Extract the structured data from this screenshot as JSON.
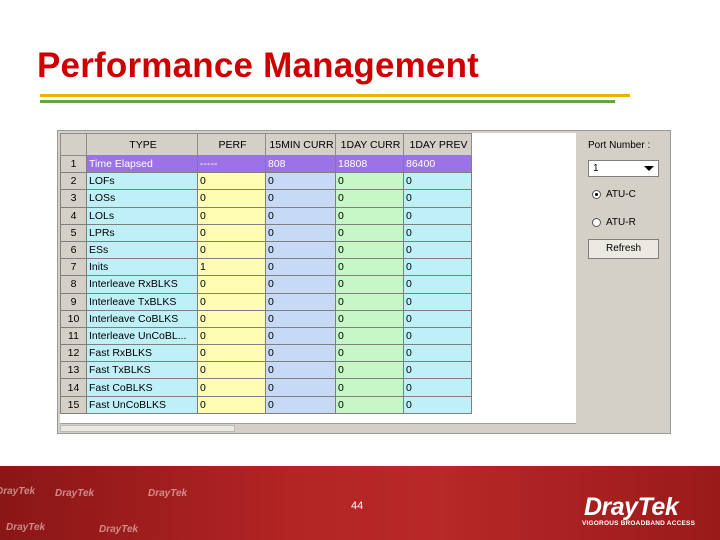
{
  "slide": {
    "title": "Performance Management",
    "page_number": "44"
  },
  "grid": {
    "columns": [
      "",
      "TYPE",
      "PERF",
      "15MIN CURR",
      "1DAY CURR",
      "1DAY PREV"
    ],
    "rows": [
      {
        "num": "1",
        "type": "Time Elapsed",
        "perf": "-----",
        "c15": "808",
        "dcur": "18808",
        "dprev": "86400",
        "selected": true
      },
      {
        "num": "2",
        "type": "LOFs",
        "perf": "0",
        "c15": "0",
        "dcur": "0",
        "dprev": "0"
      },
      {
        "num": "3",
        "type": "LOSs",
        "perf": "0",
        "c15": "0",
        "dcur": "0",
        "dprev": "0"
      },
      {
        "num": "4",
        "type": "LOLs",
        "perf": "0",
        "c15": "0",
        "dcur": "0",
        "dprev": "0"
      },
      {
        "num": "5",
        "type": "LPRs",
        "perf": "0",
        "c15": "0",
        "dcur": "0",
        "dprev": "0"
      },
      {
        "num": "6",
        "type": "ESs",
        "perf": "0",
        "c15": "0",
        "dcur": "0",
        "dprev": "0"
      },
      {
        "num": "7",
        "type": "Inits",
        "perf": "1",
        "c15": "0",
        "dcur": "0",
        "dprev": "0"
      },
      {
        "num": "8",
        "type": "Interleave RxBLKS",
        "perf": "0",
        "c15": "0",
        "dcur": "0",
        "dprev": "0"
      },
      {
        "num": "9",
        "type": "Interleave TxBLKS",
        "perf": "0",
        "c15": "0",
        "dcur": "0",
        "dprev": "0"
      },
      {
        "num": "10",
        "type": "Interleave CoBLKS",
        "perf": "0",
        "c15": "0",
        "dcur": "0",
        "dprev": "0"
      },
      {
        "num": "11",
        "type": "Interleave UnCoBL...",
        "perf": "0",
        "c15": "0",
        "dcur": "0",
        "dprev": "0"
      },
      {
        "num": "12",
        "type": "Fast RxBLKS",
        "perf": "0",
        "c15": "0",
        "dcur": "0",
        "dprev": "0"
      },
      {
        "num": "13",
        "type": "Fast TxBLKS",
        "perf": "0",
        "c15": "0",
        "dcur": "0",
        "dprev": "0"
      },
      {
        "num": "14",
        "type": "Fast CoBLKS",
        "perf": "0",
        "c15": "0",
        "dcur": "0",
        "dprev": "0"
      },
      {
        "num": "15",
        "type": "Fast UnCoBLKS",
        "perf": "0",
        "c15": "0",
        "dcur": "0",
        "dprev": "0"
      }
    ]
  },
  "panel": {
    "port_label": "Port Number :",
    "port_value": "1",
    "radio_atuc": "ATU-C",
    "radio_atur": "ATU-R",
    "selected_radio": "ATU-C",
    "refresh_label": "Refresh"
  },
  "footer": {
    "logo_text": "DrayTek",
    "logo_tagline": "VIGOROUS BROADBAND ACCESS",
    "watermark_text": "DrayTek"
  },
  "colors": {
    "title": "#cc0000",
    "footer": "#a91d1d",
    "selected_row": "#9b73e6",
    "type_col": "#bff0f7",
    "perf_col": "#fffcb4",
    "min15_col": "#c6d9f5",
    "day_curr_col": "#c7f7c7",
    "day_prev_col": "#bff0f7"
  }
}
